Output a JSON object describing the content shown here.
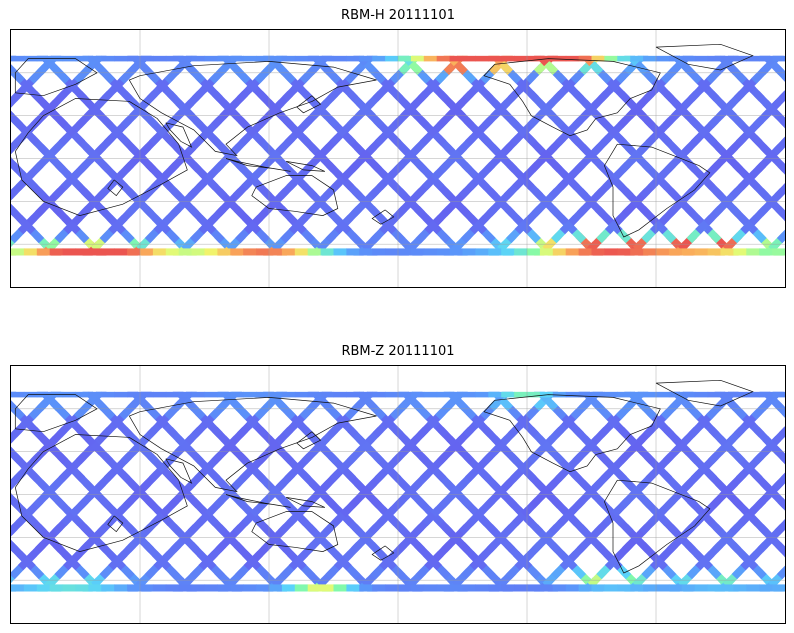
{
  "panels": [
    {
      "id": "top",
      "title": "RBM-H 20111101",
      "hot_zones": [
        {
          "lon_center": -140,
          "lat_center": -65,
          "intensity": 0.95,
          "spread_lon": 40,
          "spread_lat": 8
        },
        {
          "lon_center": -60,
          "lat_center": -67,
          "intensity": 0.75,
          "spread_lon": 35,
          "spread_lat": 6
        },
        {
          "lon_center": 95,
          "lat_center": -62,
          "intensity": 0.9,
          "spread_lon": 45,
          "spread_lat": 10
        },
        {
          "lon_center": 30,
          "lat_center": 68,
          "intensity": 0.8,
          "spread_lon": 30,
          "spread_lat": 6
        },
        {
          "lon_center": 75,
          "lat_center": 70,
          "intensity": 0.9,
          "spread_lon": 25,
          "spread_lat": 5
        },
        {
          "lon_center": 150,
          "lat_center": -60,
          "intensity": 0.7,
          "spread_lon": 25,
          "spread_lat": 8
        }
      ]
    },
    {
      "id": "bottom",
      "title": "RBM-Z 20111101",
      "hot_zones": [
        {
          "lon_center": -35,
          "lat_center": -68,
          "intensity": 0.85,
          "spread_lon": 18,
          "spread_lat": 4
        },
        {
          "lon_center": 95,
          "lat_center": -58,
          "intensity": 0.5,
          "spread_lon": 25,
          "spread_lat": 8
        },
        {
          "lon_center": 60,
          "lat_center": 68,
          "intensity": 0.5,
          "spread_lon": 15,
          "spread_lat": 4
        },
        {
          "lon_center": -150,
          "lat_center": -62,
          "intensity": 0.35,
          "spread_lon": 35,
          "spread_lat": 8
        },
        {
          "lon_center": 150,
          "lat_center": -60,
          "intensity": 0.4,
          "spread_lon": 25,
          "spread_lat": 8
        }
      ]
    }
  ],
  "map": {
    "projection": "equirectangular",
    "lon_range": [
      -180,
      180
    ],
    "lat_range": [
      -90,
      90
    ],
    "coverage_lat": [
      -68,
      72
    ],
    "gridlines_lon": [
      -120,
      -60,
      0,
      60,
      120
    ],
    "gridlines_lat": [
      -60,
      -30,
      0,
      30,
      60
    ],
    "colormap": "jet",
    "base_color": "#6a6af0"
  }
}
